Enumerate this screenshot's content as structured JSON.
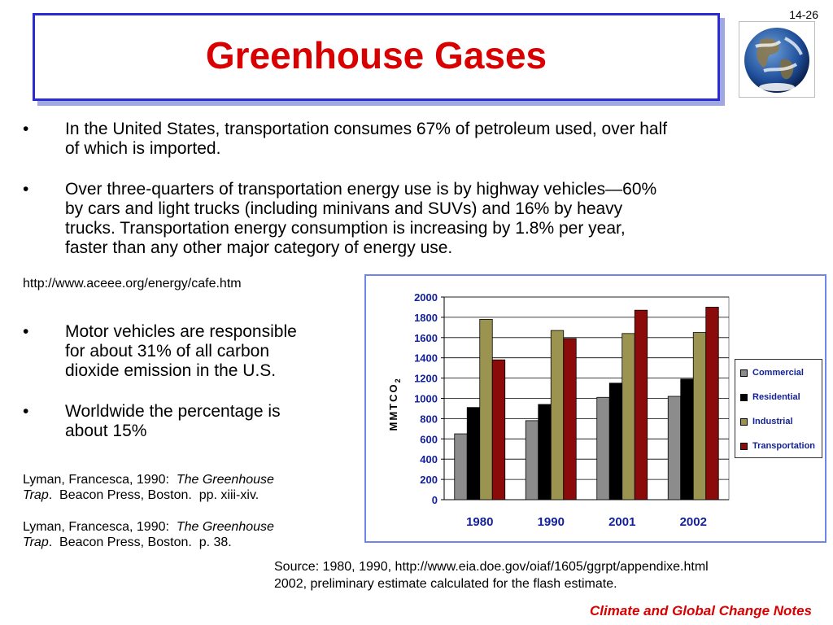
{
  "slide_number": "14-26",
  "title": "Greenhouse Gases",
  "bullets_top": [
    {
      "symbol": "•",
      "lines": [
        "In the United States, transportation consumes 67% of petroleum used, over half",
        "of which is imported."
      ]
    },
    {
      "symbol": "•",
      "lines": [
        "Over three-quarters of transportation energy use is by highway vehicles—60%",
        "by cars and light trucks (including minivans and SUVs) and 16% by heavy",
        "trucks. Transportation energy consumption is increasing by 1.8% per year,",
        "faster than any other major category of energy use."
      ]
    }
  ],
  "url_ref": "http://www.aceee.org/energy/cafe.htm",
  "bullets_left": [
    {
      "symbol": "•",
      "lines": [
        "Motor vehicles are responsible",
        "for about 31% of all carbon",
        "dioxide emission in the U.S."
      ]
    },
    {
      "symbol": "•",
      "lines": [
        "Worldwide the percentage is",
        "about 15%"
      ]
    }
  ],
  "references": [
    {
      "prefix": "Lyman, Francesca, 1990:  ",
      "title_line1": "The Greenhouse",
      "title_line2": "Trap",
      "suffix": ".  Beacon Press, Boston.  pp. xiii-xiv."
    },
    {
      "prefix": "Lyman, Francesca, 1990:  ",
      "title_line1": "The Greenhouse",
      "title_line2": "Trap",
      "suffix": ".  Beacon Press, Boston.  p. 38."
    }
  ],
  "source_lines": [
    "Source: 1980, 1990, http://www.eia.doe.gov/oiaf/1605/ggrpt/appendixe.html",
    "2002, preliminary estimate calculated for the flash estimate."
  ],
  "footer": "Climate and Global Change Notes",
  "chart_data": {
    "type": "bar",
    "categories": [
      "1980",
      "1990",
      "2001",
      "2002"
    ],
    "series": [
      {
        "name": "Commercial",
        "color": "#8c8c8c",
        "values": [
          650,
          780,
          1010,
          1020
        ]
      },
      {
        "name": "Residential",
        "color": "#000000",
        "values": [
          910,
          940,
          1150,
          1190
        ]
      },
      {
        "name": "Industrial",
        "color": "#9a9450",
        "values": [
          1780,
          1670,
          1640,
          1650
        ]
      },
      {
        "name": "Transportation",
        "color": "#8b0a0a",
        "values": [
          1380,
          1590,
          1870,
          1900
        ]
      }
    ],
    "ylabel_main": "MMTCO",
    "ylabel_sub": "2",
    "ylim": [
      0,
      2000
    ],
    "yticks": [
      "0",
      "200",
      "400",
      "600",
      "800",
      "1000",
      "1200",
      "1400",
      "1600",
      "1800",
      "2000"
    ],
    "grid": true,
    "legend": "right"
  }
}
